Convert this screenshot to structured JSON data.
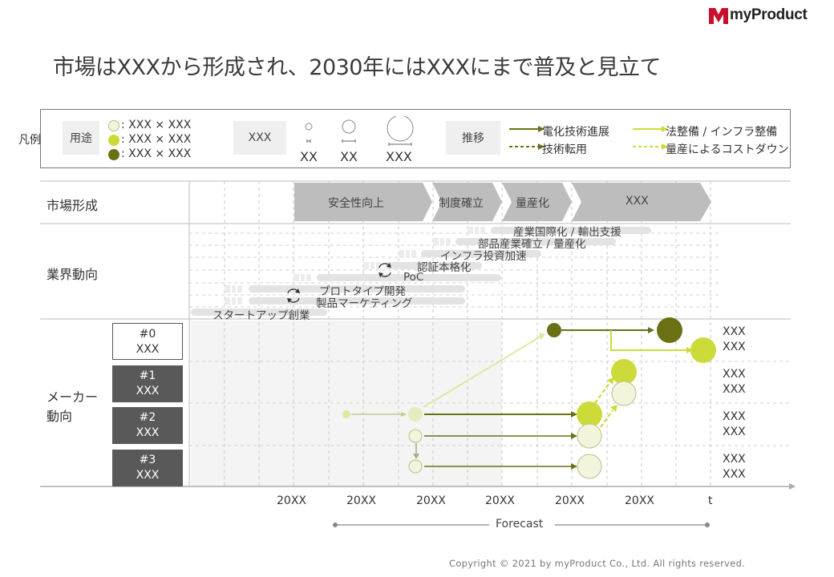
{
  "brand": {
    "name": "myProduct",
    "logo_color": "#c8102e"
  },
  "title": "市場はXXXから形成され、2030年にはXXXにまで普及と見立て",
  "legend": {
    "label": "凡例",
    "usage_tag": "用途",
    "usage_items": [
      ": XXX × XXX",
      ": XXX × XXX",
      ": XXX × XXX"
    ],
    "size_tag": "XXX",
    "size_labels": [
      "XX",
      "XX",
      "XXX"
    ],
    "trend_tag": "推移",
    "trend_items": [
      "電化技術進展",
      "技術転用",
      "法整備 / インフラ整備",
      "量産によるコストダウン"
    ]
  },
  "rows": {
    "market": "市場形成",
    "industry": "業界動向",
    "maker": "メーカー\n動向"
  },
  "market_phases": [
    "安全性向上",
    "制度確立",
    "量産化",
    "XXX"
  ],
  "industry_trends": [
    "産業国際化 / 輸出支援",
    "部品産業確立 / 量産化",
    "インフラ投資加速",
    "認証本格化",
    "PoC",
    "プロトタイプ開発",
    "製品マーケティング",
    "スタートアップ創業"
  ],
  "makers": [
    {
      "id": "#0",
      "name": "XXX",
      "right": [
        "XXX",
        "XXX"
      ]
    },
    {
      "id": "#1",
      "name": "XXX",
      "right": [
        "XXX",
        "XXX"
      ]
    },
    {
      "id": "#2",
      "name": "XXX",
      "right": [
        "XXX",
        "XXX"
      ]
    },
    {
      "id": "#3",
      "name": "XXX",
      "right": [
        "XXX",
        "XXX"
      ]
    }
  ],
  "x_ticks": [
    "20XX",
    "20XX",
    "20XX",
    "20XX",
    "20XX",
    "20XX",
    "t"
  ],
  "forecast": "Forecast",
  "copyright": "Copyright © 2021 by myProduct Co., Ltd.  All rights reserved.",
  "colors": {
    "dark_olive": "#6b7014",
    "lime": "#ccdb3a",
    "pale": "#f2f5dc",
    "chevron": "#bdbdbd",
    "maker_dark": "#595959"
  }
}
